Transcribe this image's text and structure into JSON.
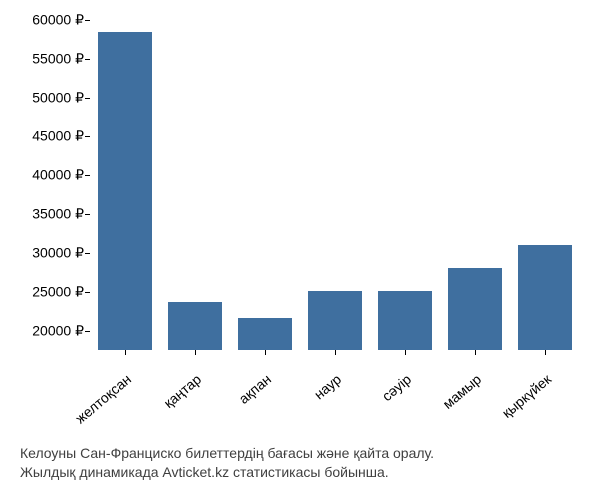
{
  "chart": {
    "type": "bar",
    "categories": [
      "желтоқсан",
      "қаңтар",
      "ақпан",
      "наур",
      "сәуір",
      "мамыр",
      "қыркүйек"
    ],
    "values": [
      58500,
      23700,
      21600,
      25100,
      25100,
      28100,
      31000
    ],
    "bar_color": "#3f6f9f",
    "background_color": "#ffffff",
    "ylabel_suffix": " ₽",
    "ylim": [
      17500,
      60000
    ],
    "ytick_start": 20000,
    "ytick_end": 60000,
    "ytick_step": 5000,
    "label_fontsize": 14,
    "bar_width_ratio": 0.78,
    "x_label_rotation_deg": -40
  },
  "caption": {
    "line1": "Келоуны Сан-Франциско билеттердің бағасы және қайта оралу.",
    "line2": "Жылдық динамикада Avticket.kz статистикасы бойынша."
  }
}
